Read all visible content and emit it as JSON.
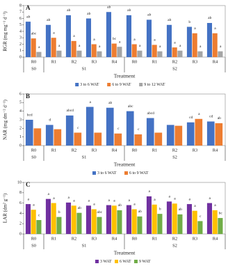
{
  "chart_data": [
    {
      "type": "bar",
      "panel_label": "A",
      "y_label": "RGR (mg mg⁻¹ d⁻¹)",
      "x_label": "Treatment",
      "groups": [
        {
          "name": "S0",
          "categories": [
            "R0"
          ]
        },
        {
          "name": "S1",
          "categories": [
            "R1",
            "R2",
            "R3",
            "R4"
          ]
        },
        {
          "name": "S2",
          "categories": [
            "R0",
            "R1",
            "R2",
            "R3",
            "R4"
          ]
        }
      ],
      "ylim": [
        0,
        8
      ],
      "yticks": [
        0,
        1,
        2,
        3,
        4,
        5,
        6,
        7,
        8
      ],
      "series": [
        {
          "name": "3 to 6 WAT",
          "color": "#4472c4",
          "values": [
            5.5,
            5.0,
            6.5,
            6.0,
            7.0,
            6.5,
            5.8,
            5.0,
            4.7,
            5.3
          ],
          "letters": [
            "ab",
            "ab",
            "ab",
            "ab",
            "ab",
            "ab",
            "ab",
            "ab",
            "b",
            "ab"
          ]
        },
        {
          "name": "6 to 9 WAT",
          "color": "#ed7d31",
          "values": [
            2.9,
            3.0,
            2.5,
            2.0,
            2.1,
            2.0,
            1.9,
            1.5,
            3.7,
            3.7
          ],
          "letters": [
            "abc",
            "a",
            "a",
            "a",
            "bc",
            "a",
            "a",
            "a",
            "a",
            "a"
          ]
        },
        {
          "name": "9 to 12 WAT",
          "color": "#a5a5a5",
          "values": [
            0.8,
            1.0,
            1.0,
            0.9,
            1.6,
            1.0,
            0.9,
            1.0,
            0.9,
            0.9
          ],
          "letters": [
            "a",
            "a",
            "a",
            "a",
            "a",
            "a",
            "a",
            "a",
            "a",
            "a"
          ]
        }
      ]
    },
    {
      "type": "bar",
      "panel_label": "B",
      "y_label": "NAR (mg dm⁻² d⁻¹)",
      "x_label": "Treatment",
      "groups": [
        {
          "name": "S0",
          "categories": [
            "R0"
          ]
        },
        {
          "name": "S1",
          "categories": [
            "R1",
            "R2",
            "R3",
            "R4"
          ]
        },
        {
          "name": "S2",
          "categories": [
            "R0",
            "R1",
            "R2",
            "R3",
            "R4"
          ]
        }
      ],
      "ylim": [
        0,
        6
      ],
      "yticks": [
        0,
        1,
        2,
        3,
        4,
        5,
        6
      ],
      "series": [
        {
          "name": "3 to 6 WAT",
          "color": "#4472c4",
          "values": [
            3.0,
            2.4,
            3.5,
            4.5,
            4.4,
            4.0,
            3.2,
            2.4,
            2.7,
            2.8
          ],
          "letters": [
            "bcd",
            "d",
            "abcd",
            "a",
            "ab",
            "abc",
            "abcd",
            null,
            "cd",
            "cd"
          ]
        },
        {
          "name": "6 to 9 WAT",
          "color": "#ed7d31",
          "values": [
            2.0,
            1.9,
            1.5,
            1.5,
            1.4,
            1.3,
            1.5,
            2.3,
            3.1,
            2.6
          ],
          "letters": [
            null,
            null,
            "c",
            null,
            "c",
            "c",
            null,
            null,
            "a",
            "ab"
          ]
        }
      ]
    },
    {
      "type": "bar",
      "panel_label": "C",
      "y_label": "LAR (dm² g⁻¹)",
      "x_label": "Treatment",
      "groups": [
        {
          "name": "S0",
          "categories": [
            "R0"
          ]
        },
        {
          "name": "S1",
          "categories": [
            "R1",
            "R2",
            "R3",
            "R4"
          ]
        },
        {
          "name": "S2",
          "categories": [
            "R0",
            "R1",
            "R2",
            "R3",
            "R4"
          ]
        }
      ],
      "ylim": [
        0,
        10
      ],
      "yticks": [
        0,
        2,
        4,
        6,
        8,
        10
      ],
      "series": [
        {
          "name": "3 WAT",
          "color": "#7030a0",
          "values": [
            5.8,
            6.8,
            6.1,
            5.5,
            5.6,
            5.6,
            7.3,
            6.3,
            5.8,
            6.0
          ],
          "letters": [
            "a",
            "a",
            "a",
            "a",
            "a",
            "a",
            "a",
            "a",
            "a",
            "a"
          ]
        },
        {
          "name": "6 WAT",
          "color": "#ffc000",
          "values": [
            4.7,
            6.0,
            5.5,
            4.8,
            5.5,
            4.8,
            5.7,
            5.9,
            4.5,
            4.6
          ],
          "letters": [
            "a",
            "a",
            "a",
            "a",
            "a",
            "a",
            "a",
            "a",
            "a",
            "a"
          ]
        },
        {
          "name": "9 WAT",
          "color": "#70ad47",
          "values": [
            2.7,
            3.3,
            4.1,
            3.3,
            4.6,
            3.4,
            3.9,
            3.8,
            2.5,
            3.1
          ],
          "letters": [
            "c",
            "b",
            "ab",
            "abc",
            "ab",
            "ab",
            "b",
            "ab",
            "c",
            "bc"
          ]
        }
      ]
    }
  ]
}
